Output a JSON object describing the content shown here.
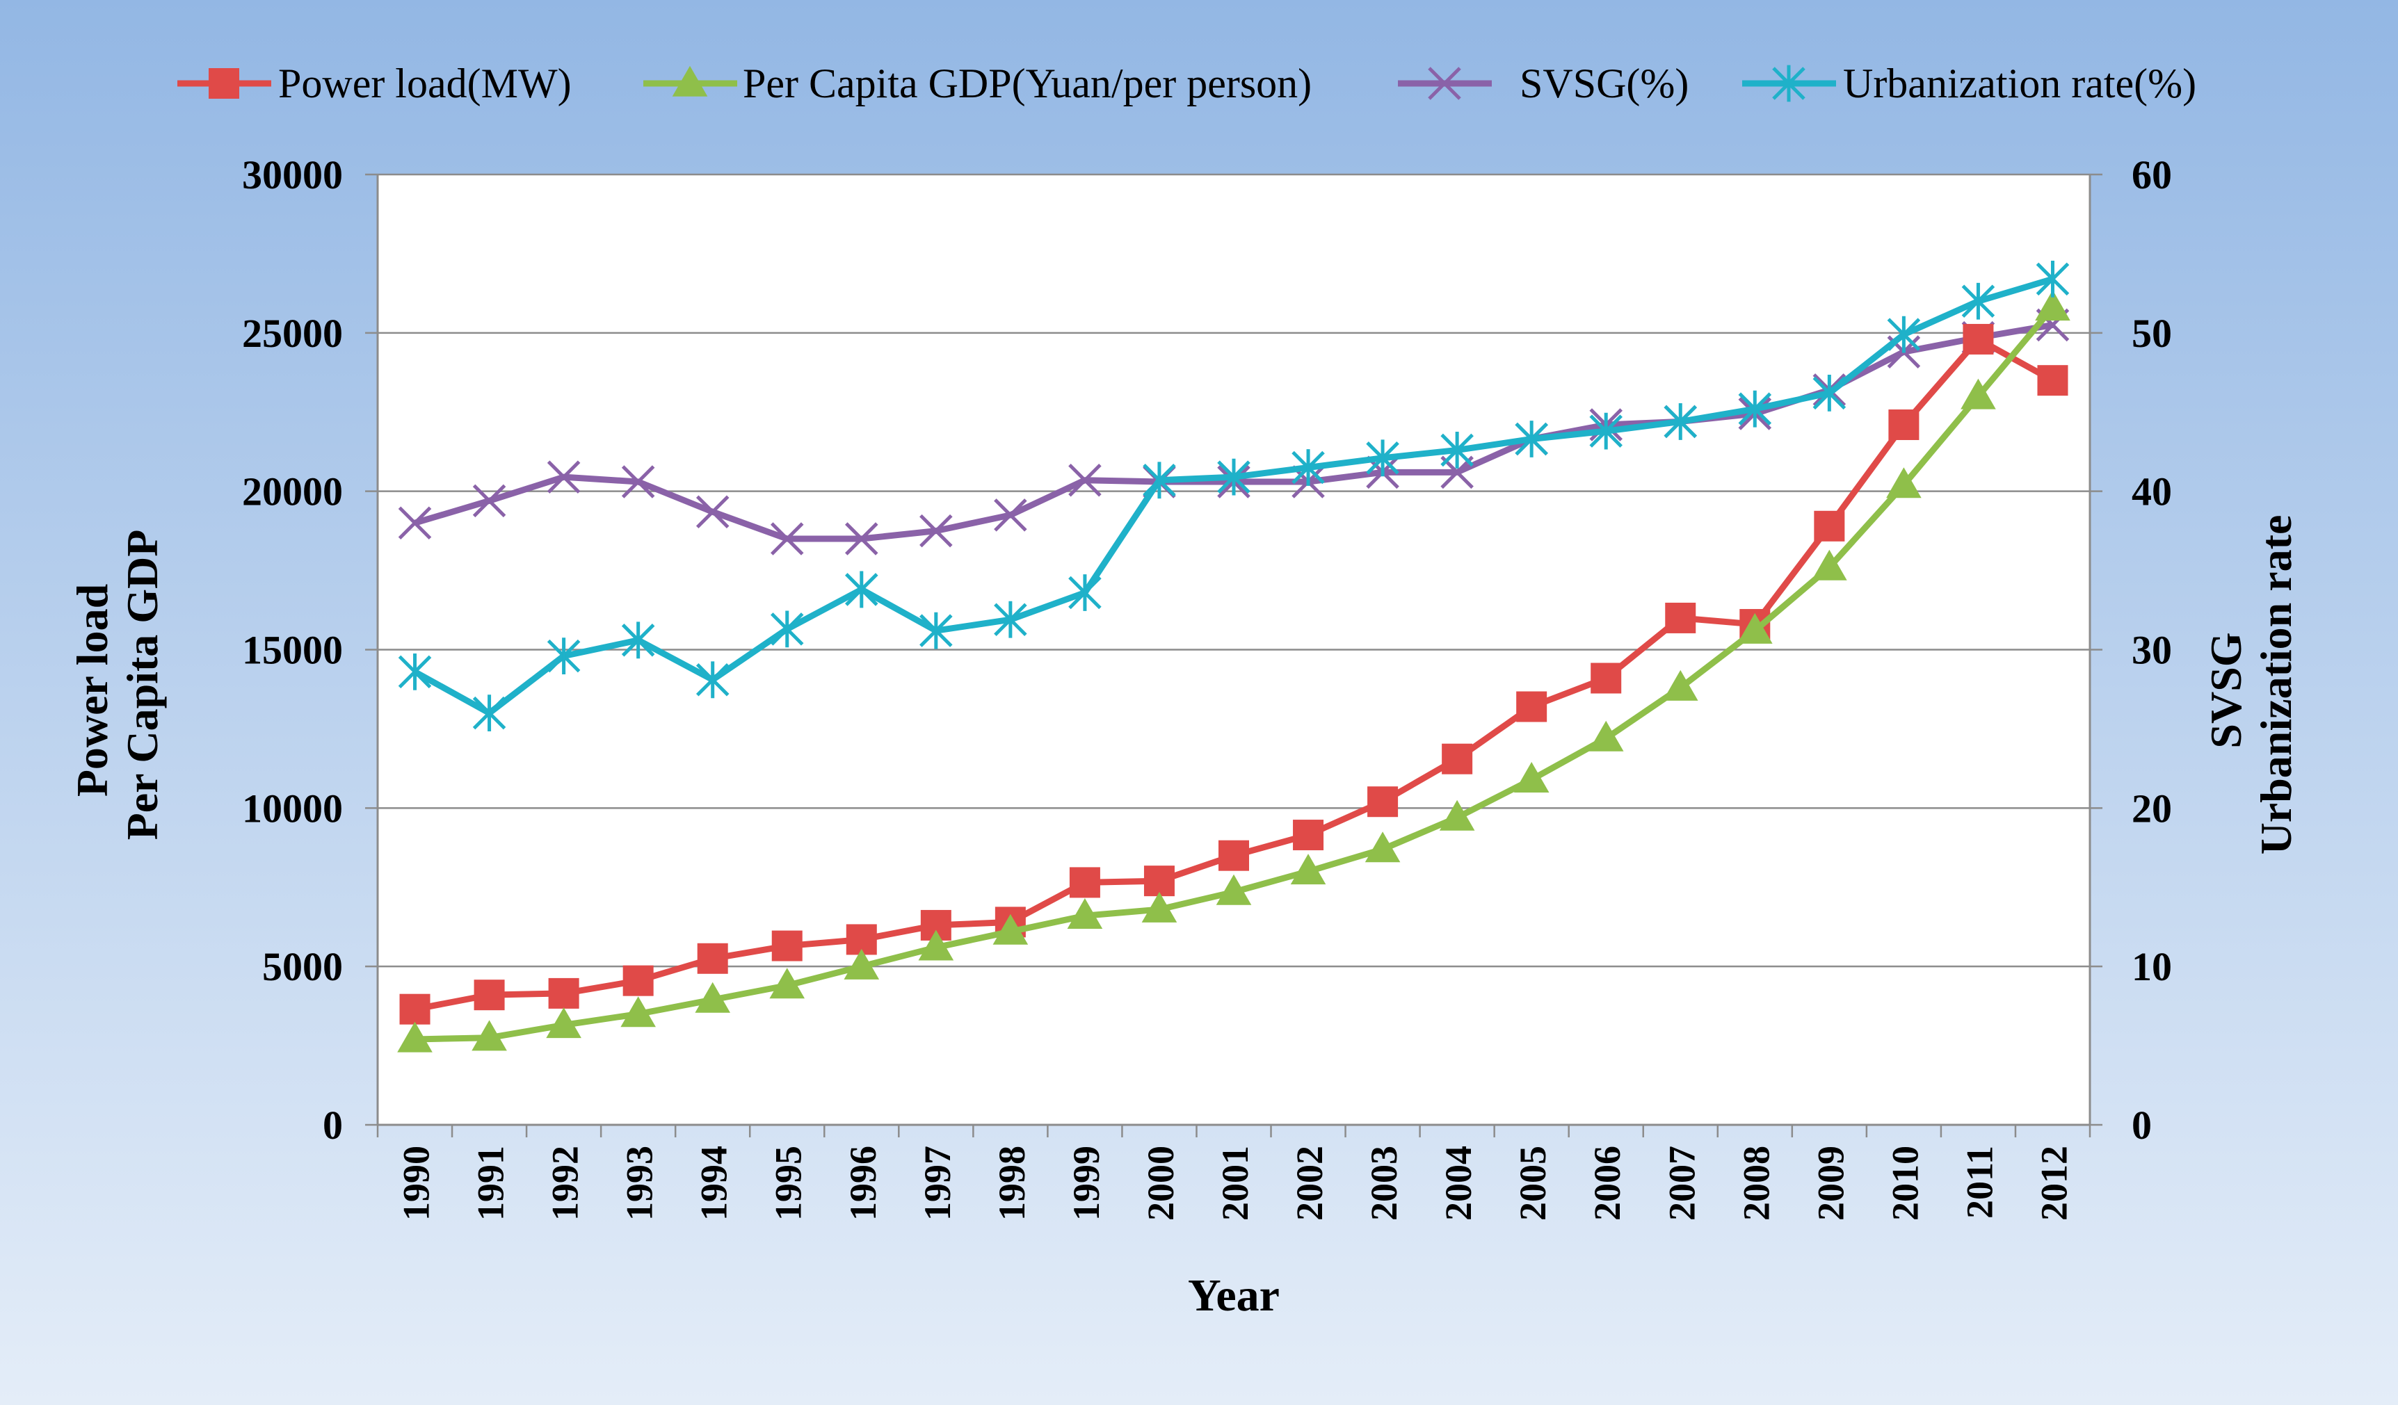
{
  "chart_data": {
    "type": "line",
    "title": "",
    "xlabel": "Year",
    "ylabel_left": [
      "Power load",
      "Per Capita GDP"
    ],
    "ylabel_right": [
      "SVSG",
      "Urbanization rate"
    ],
    "ylim_left": [
      0,
      30000
    ],
    "ylim_right": [
      0,
      60
    ],
    "yticks_left": [
      "0",
      "5000",
      "10000",
      "15000",
      "20000",
      "25000",
      "30000"
    ],
    "yticks_right": [
      "0",
      "10",
      "20",
      "30",
      "40",
      "50",
      "60"
    ],
    "grid": true,
    "legend_position": "top",
    "categories": [
      "1990",
      "1991",
      "1992",
      "1993",
      "1994",
      "1995",
      "1996",
      "1997",
      "1998",
      "1999",
      "2000",
      "2001",
      "2002",
      "2003",
      "2004",
      "2005",
      "2006",
      "2007",
      "2008",
      "2009",
      "2010",
      "2011",
      "2012"
    ],
    "series": [
      {
        "name": "Power load(MW)",
        "axis": "left",
        "color": "#e04a48",
        "marker": "square",
        "values": [
          3650,
          4100,
          4150,
          4550,
          5250,
          5650,
          5850,
          6300,
          6400,
          7650,
          7700,
          8500,
          9150,
          10200,
          11550,
          13200,
          14100,
          16000,
          15800,
          18900,
          22100,
          24800,
          23500
        ]
      },
      {
        "name": "Per Capita GDP(Yuan/per person)",
        "axis": "left",
        "color": "#8fbf4a",
        "marker": "triangle",
        "values": [
          2700,
          2750,
          3150,
          3500,
          3950,
          4400,
          5000,
          5600,
          6100,
          6600,
          6800,
          7350,
          8000,
          8700,
          9700,
          10900,
          12200,
          13800,
          15600,
          17600,
          20200,
          23000,
          25800
        ]
      },
      {
        "name": "SVSG(%)",
        "axis": "right",
        "color": "#8a62a8",
        "marker": "x",
        "values": [
          38.0,
          39.4,
          40.9,
          40.6,
          38.7,
          37.0,
          37.0,
          37.5,
          38.5,
          40.7,
          40.6,
          40.6,
          40.6,
          41.2,
          41.2,
          43.3,
          44.2,
          44.4,
          44.9,
          46.4,
          48.8,
          49.7,
          50.5
        ]
      },
      {
        "name": "Urbanization rate(%)",
        "axis": "right",
        "color": "#1fb1c9",
        "marker": "asterisk",
        "values": [
          28.6,
          26.0,
          29.6,
          30.6,
          28.1,
          31.3,
          33.8,
          31.2,
          31.9,
          33.6,
          40.7,
          40.9,
          41.5,
          42.1,
          42.6,
          43.3,
          43.8,
          44.4,
          45.2,
          46.2,
          49.9,
          52.0,
          53.4
        ]
      }
    ]
  }
}
